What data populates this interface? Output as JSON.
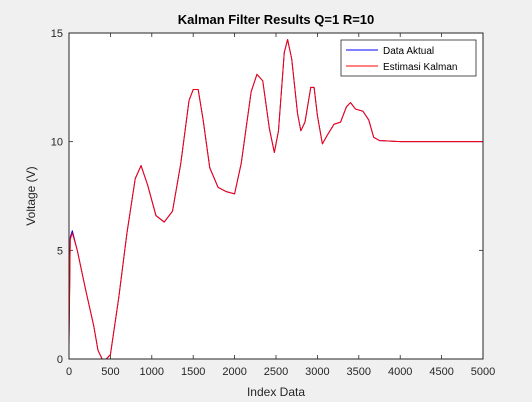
{
  "chart_data": {
    "type": "line",
    "title": "Kalman Filter Results Q=1 R=10",
    "xlabel": "Index Data",
    "ylabel": "Voltage (V)",
    "xlim": [
      0,
      5000
    ],
    "ylim": [
      0,
      15
    ],
    "xticks": [
      0,
      500,
      1000,
      1500,
      2000,
      2500,
      3000,
      3500,
      4000,
      4500,
      5000
    ],
    "yticks": [
      0,
      5,
      10,
      15
    ],
    "grid": false,
    "legend_position": "top-right",
    "series": [
      {
        "name": "Data Aktual",
        "color": "#0000ff",
        "points": [
          [
            0,
            1.0
          ],
          [
            15,
            5.6
          ],
          [
            40,
            5.9
          ],
          [
            100,
            5.0
          ],
          [
            200,
            3.2
          ],
          [
            300,
            1.5
          ],
          [
            350,
            0.4
          ],
          [
            400,
            0.0
          ],
          [
            450,
            0.0
          ],
          [
            500,
            0.2
          ],
          [
            600,
            2.8
          ],
          [
            700,
            5.8
          ],
          [
            800,
            8.3
          ],
          [
            870,
            8.9
          ],
          [
            950,
            8.0
          ],
          [
            1050,
            6.6
          ],
          [
            1150,
            6.3
          ],
          [
            1250,
            6.8
          ],
          [
            1350,
            9.0
          ],
          [
            1450,
            11.9
          ],
          [
            1500,
            12.4
          ],
          [
            1560,
            12.4
          ],
          [
            1620,
            11.0
          ],
          [
            1700,
            8.8
          ],
          [
            1800,
            7.9
          ],
          [
            1900,
            7.7
          ],
          [
            2000,
            7.6
          ],
          [
            2080,
            9.0
          ],
          [
            2200,
            12.3
          ],
          [
            2270,
            13.1
          ],
          [
            2340,
            12.8
          ],
          [
            2420,
            10.6
          ],
          [
            2480,
            9.5
          ],
          [
            2530,
            10.5
          ],
          [
            2600,
            14.1
          ],
          [
            2640,
            14.7
          ],
          [
            2690,
            13.8
          ],
          [
            2760,
            11.3
          ],
          [
            2800,
            10.5
          ],
          [
            2850,
            10.9
          ],
          [
            2920,
            12.5
          ],
          [
            2960,
            12.5
          ],
          [
            3000,
            11.2
          ],
          [
            3060,
            9.9
          ],
          [
            3120,
            10.3
          ],
          [
            3200,
            10.8
          ],
          [
            3280,
            10.9
          ],
          [
            3350,
            11.6
          ],
          [
            3400,
            11.8
          ],
          [
            3460,
            11.5
          ],
          [
            3550,
            11.4
          ],
          [
            3620,
            11.0
          ],
          [
            3680,
            10.2
          ],
          [
            3750,
            10.05
          ],
          [
            4000,
            10.0
          ],
          [
            5000,
            10.0
          ]
        ]
      },
      {
        "name": "Estimasi Kalman",
        "color": "#ff0000",
        "points": [
          [
            0,
            0.5
          ],
          [
            15,
            5.5
          ],
          [
            40,
            5.8
          ],
          [
            100,
            5.0
          ],
          [
            200,
            3.2
          ],
          [
            300,
            1.5
          ],
          [
            350,
            0.4
          ],
          [
            400,
            0.0
          ],
          [
            450,
            0.0
          ],
          [
            500,
            0.2
          ],
          [
            600,
            2.8
          ],
          [
            700,
            5.8
          ],
          [
            800,
            8.3
          ],
          [
            870,
            8.9
          ],
          [
            950,
            8.0
          ],
          [
            1050,
            6.6
          ],
          [
            1150,
            6.3
          ],
          [
            1250,
            6.8
          ],
          [
            1350,
            9.0
          ],
          [
            1450,
            11.9
          ],
          [
            1500,
            12.4
          ],
          [
            1560,
            12.4
          ],
          [
            1620,
            11.0
          ],
          [
            1700,
            8.8
          ],
          [
            1800,
            7.9
          ],
          [
            1900,
            7.7
          ],
          [
            2000,
            7.6
          ],
          [
            2080,
            9.0
          ],
          [
            2200,
            12.3
          ],
          [
            2270,
            13.1
          ],
          [
            2340,
            12.8
          ],
          [
            2420,
            10.6
          ],
          [
            2480,
            9.5
          ],
          [
            2530,
            10.5
          ],
          [
            2600,
            14.1
          ],
          [
            2640,
            14.7
          ],
          [
            2690,
            13.8
          ],
          [
            2760,
            11.3
          ],
          [
            2800,
            10.5
          ],
          [
            2850,
            10.9
          ],
          [
            2920,
            12.5
          ],
          [
            2960,
            12.5
          ],
          [
            3000,
            11.2
          ],
          [
            3060,
            9.9
          ],
          [
            3120,
            10.3
          ],
          [
            3200,
            10.8
          ],
          [
            3280,
            10.9
          ],
          [
            3350,
            11.6
          ],
          [
            3400,
            11.8
          ],
          [
            3460,
            11.5
          ],
          [
            3550,
            11.4
          ],
          [
            3620,
            11.0
          ],
          [
            3680,
            10.2
          ],
          [
            3750,
            10.05
          ],
          [
            4000,
            10.0
          ],
          [
            5000,
            10.0
          ]
        ]
      }
    ]
  }
}
